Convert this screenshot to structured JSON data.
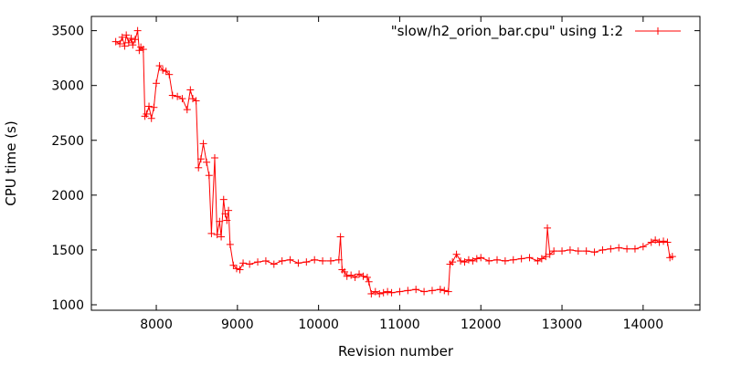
{
  "chart_data": {
    "type": "line",
    "title": "",
    "xlabel": "Revision number",
    "ylabel": "CPU time (s)",
    "xlim": [
      7200,
      14700
    ],
    "ylim": [
      950,
      3630
    ],
    "x_ticks": [
      8000,
      9000,
      10000,
      11000,
      12000,
      13000,
      14000
    ],
    "y_ticks": [
      1000,
      1500,
      2000,
      2500,
      3000,
      3500
    ],
    "grid": false,
    "legend": "top-right",
    "series": [
      {
        "name": "\"slow/h2_orion_bar.cpu\" using 1:2",
        "color": "#ff0000",
        "marker": "plus",
        "x": [
          7500,
          7550,
          7580,
          7610,
          7630,
          7660,
          7690,
          7710,
          7740,
          7770,
          7790,
          7810,
          7840,
          7860,
          7880,
          7910,
          7940,
          7970,
          8000,
          8040,
          8080,
          8120,
          8160,
          8200,
          8260,
          8320,
          8380,
          8420,
          8450,
          8490,
          8520,
          8550,
          8580,
          8620,
          8650,
          8680,
          8720,
          8750,
          8780,
          8800,
          8830,
          8850,
          8870,
          8890,
          8910,
          8950,
          8990,
          9030,
          9070,
          9150,
          9250,
          9350,
          9450,
          9550,
          9650,
          9750,
          9850,
          9950,
          10050,
          10150,
          10250,
          10270,
          10290,
          10320,
          10350,
          10400,
          10450,
          10500,
          10550,
          10600,
          10620,
          10650,
          10700,
          10750,
          10800,
          10850,
          10900,
          11000,
          11100,
          11200,
          11300,
          11400,
          11500,
          11550,
          11600,
          11620,
          11650,
          11700,
          11750,
          11800,
          11850,
          11900,
          11950,
          12000,
          12100,
          12200,
          12300,
          12400,
          12500,
          12600,
          12700,
          12750,
          12800,
          12820,
          12850,
          12900,
          13000,
          13100,
          13200,
          13300,
          13400,
          13500,
          13600,
          13700,
          13800,
          13900,
          14000,
          14100,
          14150,
          14200,
          14250,
          14300,
          14330,
          14360
        ],
        "y": [
          3400,
          3380,
          3440,
          3360,
          3460,
          3390,
          3430,
          3370,
          3420,
          3500,
          3320,
          3350,
          3330,
          2720,
          2740,
          2810,
          2700,
          2800,
          3020,
          3180,
          3140,
          3130,
          3100,
          2910,
          2900,
          2880,
          2780,
          2960,
          2880,
          2860,
          2250,
          2330,
          2470,
          2300,
          2180,
          1650,
          2340,
          1640,
          1760,
          1620,
          1960,
          1830,
          1770,
          1860,
          1550,
          1360,
          1330,
          1320,
          1380,
          1370,
          1390,
          1400,
          1370,
          1400,
          1410,
          1380,
          1390,
          1410,
          1400,
          1400,
          1410,
          1620,
          1320,
          1300,
          1260,
          1270,
          1250,
          1280,
          1260,
          1250,
          1210,
          1100,
          1120,
          1100,
          1110,
          1120,
          1110,
          1120,
          1130,
          1140,
          1120,
          1130,
          1140,
          1130,
          1120,
          1370,
          1390,
          1460,
          1400,
          1390,
          1410,
          1400,
          1420,
          1430,
          1400,
          1410,
          1400,
          1410,
          1420,
          1430,
          1400,
          1420,
          1440,
          1700,
          1460,
          1490,
          1490,
          1500,
          1490,
          1490,
          1480,
          1500,
          1510,
          1520,
          1510,
          1510,
          1530,
          1570,
          1590,
          1570,
          1580,
          1570,
          1430,
          1440
        ]
      }
    ]
  }
}
